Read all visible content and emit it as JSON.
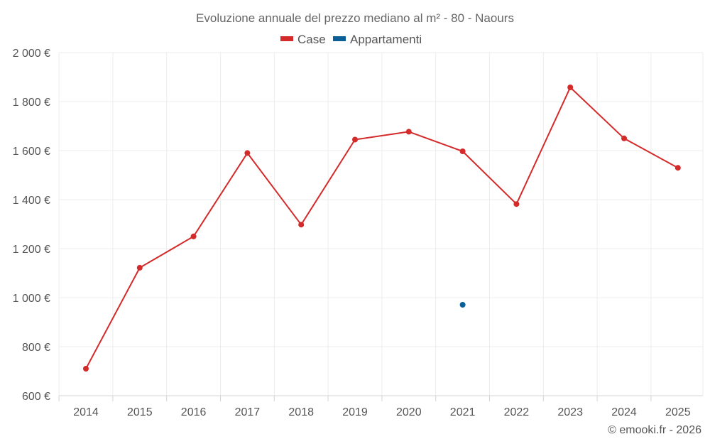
{
  "chart_data": {
    "type": "line",
    "title": "Evoluzione annuale del prezzo mediano al m² - 80 - Naours",
    "credit": "© emooki.fr - 2026",
    "categories": [
      "2014",
      "2015",
      "2016",
      "2017",
      "2018",
      "2019",
      "2020",
      "2021",
      "2022",
      "2023",
      "2024",
      "2025"
    ],
    "ylim": [
      600,
      2000
    ],
    "yticks": [
      600,
      800,
      1000,
      1200,
      1400,
      1600,
      1800,
      2000
    ],
    "ytick_labels": [
      "600 €",
      "800 €",
      "1 000 €",
      "1 200 €",
      "1 400 €",
      "1 600 €",
      "1 800 €",
      "2 000 €"
    ],
    "grid": true,
    "legend_position": "top-center",
    "series": [
      {
        "name": "Case",
        "color": "#d42a2a",
        "values": [
          710,
          1122,
          1250,
          1590,
          1298,
          1645,
          1677,
          1597,
          1382,
          1858,
          1650,
          1530
        ]
      },
      {
        "name": "Appartamenti",
        "color": "#0a5f96",
        "values": [
          null,
          null,
          null,
          null,
          null,
          null,
          null,
          971,
          null,
          null,
          null,
          null
        ]
      }
    ]
  }
}
